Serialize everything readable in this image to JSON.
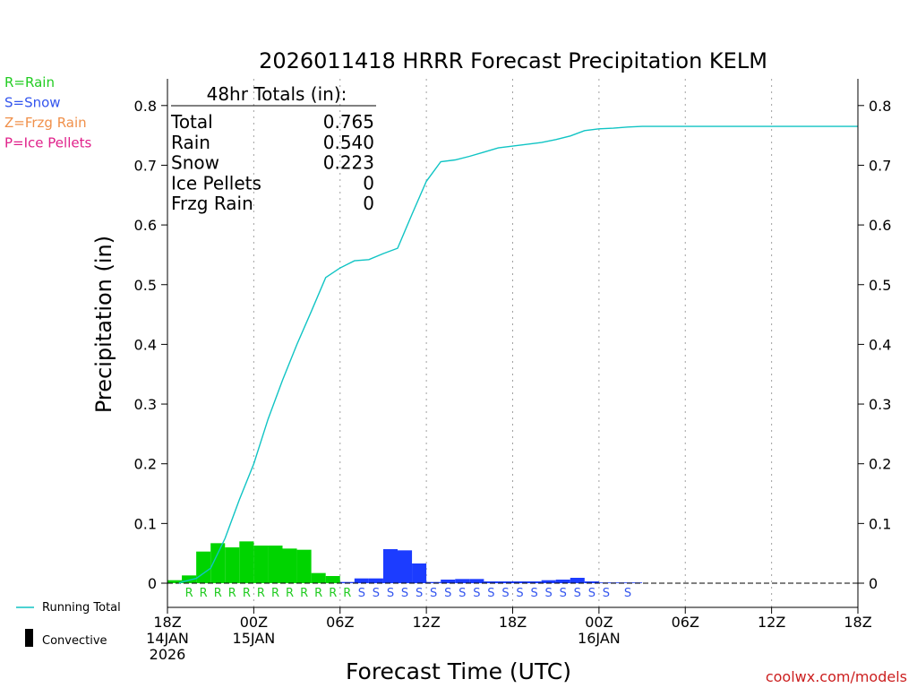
{
  "chart_data": {
    "type": "bar",
    "title": "2026011418 HRRR Forecast Precipitation KELM",
    "xlabel": "Forecast Time (UTC)",
    "ylabel": "Precipitation (in)",
    "ylim": [
      0,
      0.85
    ],
    "yticks": [
      0,
      0.1,
      0.2,
      0.3,
      0.4,
      0.5,
      0.6,
      0.7,
      0.8
    ],
    "ytick_labels": [
      "0",
      "0.1",
      "0.2",
      "0.3",
      "0.4",
      "0.5",
      "0.6",
      "0.7",
      "0.8"
    ],
    "xlim_hours": [
      0,
      48
    ],
    "xticks": [
      {
        "hour": 0,
        "lines": [
          "18Z",
          "14JAN",
          "2026"
        ]
      },
      {
        "hour": 6,
        "lines": [
          "00Z",
          "15JAN"
        ]
      },
      {
        "hour": 12,
        "lines": [
          "06Z"
        ]
      },
      {
        "hour": 18,
        "lines": [
          "12Z"
        ]
      },
      {
        "hour": 24,
        "lines": [
          "18Z"
        ]
      },
      {
        "hour": 30,
        "lines": [
          "00Z",
          "16JAN"
        ]
      },
      {
        "hour": 36,
        "lines": [
          "06Z"
        ]
      },
      {
        "hour": 42,
        "lines": [
          "12Z"
        ]
      },
      {
        "hour": 48,
        "lines": [
          "18Z"
        ]
      }
    ],
    "gridlines_hours": [
      6,
      12,
      18,
      24,
      30,
      36,
      42
    ],
    "legend": {
      "placement": "top-left",
      "entries": [
        {
          "label": "R=Rain",
          "color": "#22cc22"
        },
        {
          "label": "S=Snow",
          "color": "#3355ee"
        },
        {
          "label": "Z=Frzg Rain",
          "color": "#f0904a"
        },
        {
          "label": "P=Ice Pellets",
          "color": "#e0208a"
        }
      ]
    },
    "bottom_legend": {
      "running_total_label": "Running Total",
      "convective_label": "Convective"
    },
    "totals_box": {
      "header": "48hr Totals (in):",
      "rows": [
        {
          "label": "Total",
          "value": "0.765"
        },
        {
          "label": "Rain",
          "value": "0.540"
        },
        {
          "label": "Snow",
          "value": "0.223"
        },
        {
          "label": "Ice Pellets",
          "value": "0"
        },
        {
          "label": "Frzg Rain",
          "value": "0"
        }
      ]
    },
    "colors": {
      "rain": "#00d400",
      "snow": "#1c3cff",
      "running_total": "#10c4c4",
      "grid": "#a0a0a0"
    },
    "bars_hourly": [
      {
        "hour": 1,
        "type": "R",
        "value": 0.005
      },
      {
        "hour": 2,
        "type": "R",
        "value": 0.013
      },
      {
        "hour": 3,
        "type": "R",
        "value": 0.053
      },
      {
        "hour": 4,
        "type": "R",
        "value": 0.067
      },
      {
        "hour": 5,
        "type": "R",
        "value": 0.06
      },
      {
        "hour": 6,
        "type": "R",
        "value": 0.07
      },
      {
        "hour": 7,
        "type": "R",
        "value": 0.063
      },
      {
        "hour": 8,
        "type": "R",
        "value": 0.063
      },
      {
        "hour": 9,
        "type": "R",
        "value": 0.058
      },
      {
        "hour": 10,
        "type": "R",
        "value": 0.056
      },
      {
        "hour": 11,
        "type": "R",
        "value": 0.017
      },
      {
        "hour": 12,
        "type": "R",
        "value": 0.012
      },
      {
        "hour": 13,
        "type": "S",
        "value": 0.002
      },
      {
        "hour": 14,
        "type": "S",
        "value": 0.008
      },
      {
        "hour": 15,
        "type": "S",
        "value": 0.008
      },
      {
        "hour": 16,
        "type": "S",
        "value": 0.057
      },
      {
        "hour": 17,
        "type": "S",
        "value": 0.055
      },
      {
        "hour": 18,
        "type": "S",
        "value": 0.033
      },
      {
        "hour": 19,
        "type": "S",
        "value": 0.002
      },
      {
        "hour": 20,
        "type": "S",
        "value": 0.006
      },
      {
        "hour": 21,
        "type": "S",
        "value": 0.007
      },
      {
        "hour": 22,
        "type": "S",
        "value": 0.007
      },
      {
        "hour": 23,
        "type": "S",
        "value": 0.003
      },
      {
        "hour": 24,
        "type": "S",
        "value": 0.003
      },
      {
        "hour": 25,
        "type": "S",
        "value": 0.003
      },
      {
        "hour": 26,
        "type": "S",
        "value": 0.003
      },
      {
        "hour": 27,
        "type": "S",
        "value": 0.005
      },
      {
        "hour": 28,
        "type": "S",
        "value": 0.006
      },
      {
        "hour": 29,
        "type": "S",
        "value": 0.009
      },
      {
        "hour": 30,
        "type": "S",
        "value": 0.003
      },
      {
        "hour": 31,
        "type": "S",
        "value": 0.001
      },
      {
        "hour": 32,
        "type": "S",
        "value": 0.0005
      },
      {
        "hour": 33,
        "type": "S",
        "value": 0.0005
      }
    ],
    "ptype_markers": [
      {
        "hour": 1.5,
        "text": "R"
      },
      {
        "hour": 2.5,
        "text": "R"
      },
      {
        "hour": 3.5,
        "text": "R"
      },
      {
        "hour": 4.5,
        "text": "R"
      },
      {
        "hour": 5.5,
        "text": "R"
      },
      {
        "hour": 6.5,
        "text": "R"
      },
      {
        "hour": 7.5,
        "text": "R"
      },
      {
        "hour": 8.5,
        "text": "R"
      },
      {
        "hour": 9.5,
        "text": "R"
      },
      {
        "hour": 10.5,
        "text": "R"
      },
      {
        "hour": 11.5,
        "text": "R"
      },
      {
        "hour": 12.5,
        "text": "R"
      },
      {
        "hour": 13.5,
        "text": "S"
      },
      {
        "hour": 14.5,
        "text": "S"
      },
      {
        "hour": 15.5,
        "text": "S"
      },
      {
        "hour": 16.5,
        "text": "S"
      },
      {
        "hour": 17.5,
        "text": "S"
      },
      {
        "hour": 18.5,
        "text": "S"
      },
      {
        "hour": 19.5,
        "text": "S"
      },
      {
        "hour": 20.5,
        "text": "S"
      },
      {
        "hour": 21.5,
        "text": "S"
      },
      {
        "hour": 22.5,
        "text": "S"
      },
      {
        "hour": 23.5,
        "text": "S"
      },
      {
        "hour": 24.5,
        "text": "S"
      },
      {
        "hour": 25.5,
        "text": "S"
      },
      {
        "hour": 26.5,
        "text": "S"
      },
      {
        "hour": 27.5,
        "text": "S"
      },
      {
        "hour": 28.5,
        "text": "S"
      },
      {
        "hour": 29.5,
        "text": "S"
      },
      {
        "hour": 30.5,
        "text": "S"
      },
      {
        "hour": 32.0,
        "text": "S"
      }
    ],
    "running_total": [
      {
        "hour": 0.8,
        "value": 0.0
      },
      {
        "hour": 1.0,
        "value": 0.002
      },
      {
        "hour": 2.0,
        "value": 0.008
      },
      {
        "hour": 3.0,
        "value": 0.025
      },
      {
        "hour": 4.0,
        "value": 0.075
      },
      {
        "hour": 5.0,
        "value": 0.14
      },
      {
        "hour": 6.0,
        "value": 0.2
      },
      {
        "hour": 7.0,
        "value": 0.275
      },
      {
        "hour": 8.0,
        "value": 0.34
      },
      {
        "hour": 9.0,
        "value": 0.4
      },
      {
        "hour": 10.0,
        "value": 0.455
      },
      {
        "hour": 11.0,
        "value": 0.512
      },
      {
        "hour": 12.0,
        "value": 0.528
      },
      {
        "hour": 13.0,
        "value": 0.54
      },
      {
        "hour": 14.0,
        "value": 0.542
      },
      {
        "hour": 15.0,
        "value": 0.552
      },
      {
        "hour": 16.0,
        "value": 0.561
      },
      {
        "hour": 17.0,
        "value": 0.618
      },
      {
        "hour": 18.0,
        "value": 0.673
      },
      {
        "hour": 19.0,
        "value": 0.706
      },
      {
        "hour": 20.0,
        "value": 0.709
      },
      {
        "hour": 21.0,
        "value": 0.715
      },
      {
        "hour": 22.0,
        "value": 0.722
      },
      {
        "hour": 23.0,
        "value": 0.729
      },
      {
        "hour": 24.0,
        "value": 0.732
      },
      {
        "hour": 25.0,
        "value": 0.735
      },
      {
        "hour": 26.0,
        "value": 0.738
      },
      {
        "hour": 27.0,
        "value": 0.743
      },
      {
        "hour": 28.0,
        "value": 0.749
      },
      {
        "hour": 29.0,
        "value": 0.758
      },
      {
        "hour": 30.0,
        "value": 0.761
      },
      {
        "hour": 31.0,
        "value": 0.762
      },
      {
        "hour": 32.0,
        "value": 0.764
      },
      {
        "hour": 33.0,
        "value": 0.765
      },
      {
        "hour": 48.0,
        "value": 0.765
      }
    ],
    "watermark": "coolwx.com/models"
  }
}
